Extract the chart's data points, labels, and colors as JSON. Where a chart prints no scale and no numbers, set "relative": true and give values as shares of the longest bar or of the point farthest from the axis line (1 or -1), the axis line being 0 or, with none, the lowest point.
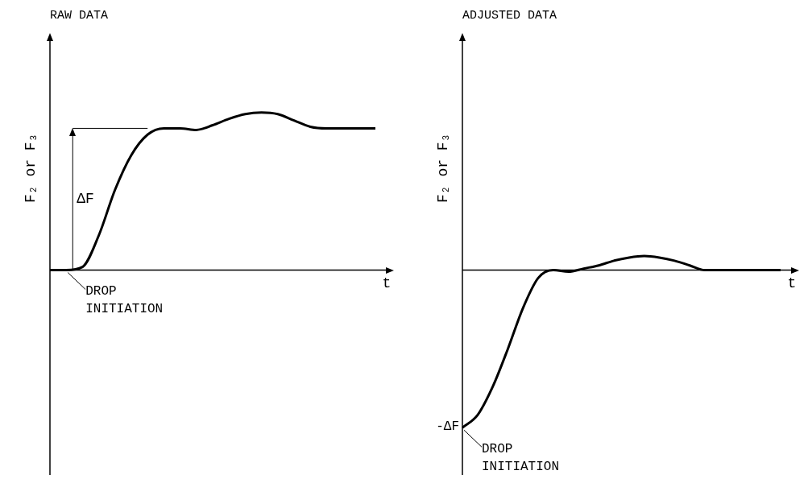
{
  "chart_data": [
    {
      "type": "line",
      "title": "RAW DATA",
      "ylabel": "F₂ or F₃",
      "xlabel": "t",
      "relative": true,
      "categories": [
        null,
        null,
        null,
        null,
        null,
        null,
        null,
        null,
        null,
        null,
        null,
        null,
        null,
        null,
        null,
        null,
        null,
        null,
        null,
        null,
        null
      ],
      "series": [
        {
          "color": "#000000",
          "values": [
            0,
            0,
            0.02,
            0.22,
            0.51,
            0.73,
            0.86,
            0.9,
            0.9,
            0.89,
            0.92,
            0.96,
            0.99,
            1,
            0.99,
            0.95,
            0.91,
            0.9,
            0.9,
            0.9,
            0.9
          ]
        }
      ],
      "ref_lines": [
        {
          "axis": "y",
          "value": 0.9,
          "label": "ΔF"
        }
      ],
      "annotations": [
        "DROP INITIATION"
      ]
    },
    {
      "type": "line",
      "title": "ADJUSTED DATA",
      "ylabel": "F₂ or F₃",
      "xlabel": "t",
      "relative": true,
      "categories": [
        null,
        null,
        null,
        null,
        null,
        null,
        null,
        null,
        null,
        null,
        null,
        null,
        null,
        null,
        null,
        null,
        null,
        null,
        null,
        null,
        null,
        null
      ],
      "series": [
        {
          "color": "#000000",
          "values": [
            -1,
            -0.92,
            -0.74,
            -0.5,
            -0.24,
            -0.05,
            0,
            -0.01,
            0.01,
            0.03,
            0.06,
            0.08,
            0.09,
            0.08,
            0.06,
            0.03,
            0,
            0,
            0,
            0,
            0,
            0
          ]
        }
      ],
      "annotations": [
        "-ΔF",
        "DROP INITIATION"
      ]
    }
  ]
}
